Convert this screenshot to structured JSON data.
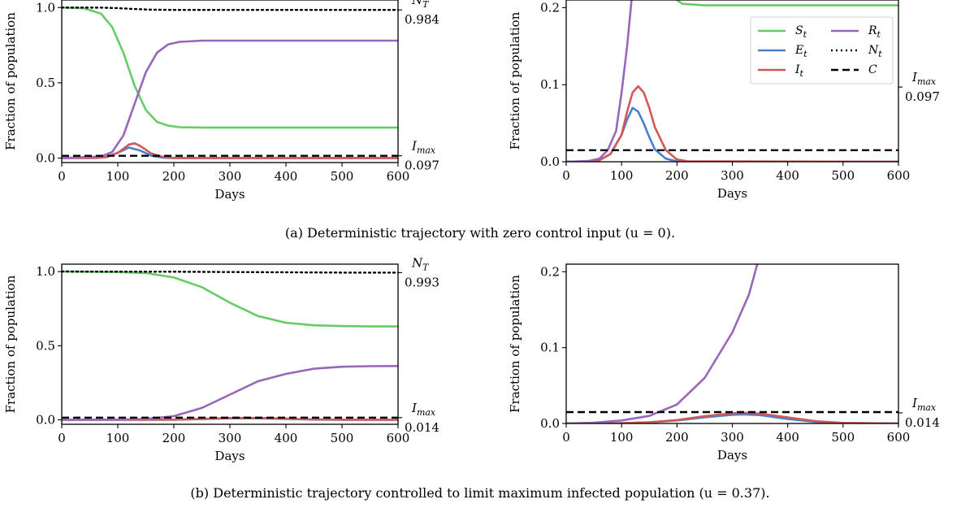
{
  "colors": {
    "S": "#66cc66",
    "E": "#4a7fd0",
    "I": "#d05858",
    "R": "#9966bb",
    "N": "#000000",
    "C": "#000000"
  },
  "captions": {
    "a": "(a) Deterministic trajectory with zero control input (u = 0).",
    "b": "(b) Deterministic trajectory controlled to limit maximum infected population (u = 0.37)."
  },
  "chart_data": [
    {
      "id": "a-full",
      "type": "line",
      "xlabel": "Days",
      "ylabel": "Fraction of population",
      "xlim": [
        0,
        600
      ],
      "ylim": [
        -0.03,
        1.05
      ],
      "xticks": [
        "0",
        "100",
        "200",
        "300",
        "400",
        "500",
        "600"
      ],
      "yticks": [
        "0.0",
        "0.5",
        "1.0"
      ],
      "right_labels": [
        {
          "name": "N_T",
          "value": "0.984"
        },
        {
          "name": "I_max",
          "value": "0.097"
        }
      ],
      "series": [
        {
          "key": "S",
          "x": [
            0,
            40,
            70,
            90,
            110,
            130,
            150,
            170,
            190,
            210,
            250,
            600
          ],
          "y": [
            1.0,
            0.995,
            0.96,
            0.87,
            0.7,
            0.48,
            0.32,
            0.24,
            0.215,
            0.205,
            0.203,
            0.203
          ]
        },
        {
          "key": "E",
          "x": [
            0,
            60,
            80,
            100,
            120,
            140,
            160,
            180,
            200,
            600
          ],
          "y": [
            0,
            0.001,
            0.008,
            0.035,
            0.07,
            0.05,
            0.015,
            0.003,
            0,
            0
          ]
        },
        {
          "key": "I",
          "x": [
            0,
            60,
            80,
            100,
            120,
            130,
            140,
            160,
            180,
            200,
            220,
            600
          ],
          "y": [
            0,
            0.001,
            0.006,
            0.035,
            0.09,
            0.098,
            0.08,
            0.03,
            0.008,
            0.001,
            0,
            0
          ]
        },
        {
          "key": "R",
          "x": [
            0,
            70,
            90,
            110,
            130,
            150,
            170,
            190,
            210,
            250,
            600
          ],
          "y": [
            0,
            0.01,
            0.04,
            0.15,
            0.36,
            0.57,
            0.7,
            0.755,
            0.772,
            0.78,
            0.78
          ]
        },
        {
          "key": "N",
          "x": [
            0,
            70,
            100,
            130,
            160,
            200,
            250,
            600
          ],
          "y": [
            1.0,
            0.999,
            0.996,
            0.99,
            0.986,
            0.984,
            0.984,
            0.984
          ]
        },
        {
          "key": "C",
          "x": [
            0,
            600
          ],
          "y": [
            0.015,
            0.015
          ]
        }
      ]
    },
    {
      "id": "a-zoom",
      "type": "line",
      "xlabel": "Days",
      "ylabel": "Fraction of population",
      "xlim": [
        0,
        600
      ],
      "ylim": [
        0,
        0.21
      ],
      "xticks": [
        "0",
        "100",
        "200",
        "300",
        "400",
        "500",
        "600"
      ],
      "yticks": [
        "0.0",
        "0.1",
        "0.2"
      ],
      "right_labels": [
        {
          "name": "I_max",
          "value": "0.097"
        }
      ],
      "legend": {
        "placement": "top-right",
        "entries": [
          {
            "key": "S",
            "label": "S_t"
          },
          {
            "key": "E",
            "label": "E_t"
          },
          {
            "key": "I",
            "label": "I_t"
          },
          {
            "key": "R",
            "label": "R_t"
          },
          {
            "key": "N",
            "label": "N_t"
          },
          {
            "key": "C",
            "label": "C"
          }
        ]
      },
      "series": [
        {
          "key": "S",
          "x": [
            150,
            170,
            190,
            210,
            250,
            600
          ],
          "y": [
            0.32,
            0.24,
            0.215,
            0.205,
            0.203,
            0.203
          ]
        },
        {
          "key": "E",
          "x": [
            0,
            40,
            60,
            80,
            100,
            110,
            120,
            130,
            140,
            150,
            160,
            180,
            200,
            220,
            600
          ],
          "y": [
            0,
            0.0005,
            0.002,
            0.01,
            0.035,
            0.055,
            0.07,
            0.065,
            0.05,
            0.032,
            0.016,
            0.004,
            0.0005,
            0,
            0
          ]
        },
        {
          "key": "I",
          "x": [
            0,
            40,
            60,
            80,
            100,
            110,
            120,
            130,
            140,
            150,
            160,
            180,
            200,
            220,
            600
          ],
          "y": [
            0,
            0.0005,
            0.002,
            0.01,
            0.035,
            0.065,
            0.09,
            0.098,
            0.09,
            0.07,
            0.045,
            0.015,
            0.003,
            0.0005,
            0
          ]
        },
        {
          "key": "R",
          "x": [
            0,
            40,
            60,
            75,
            90,
            100,
            110,
            120
          ],
          "y": [
            0,
            0.001,
            0.004,
            0.015,
            0.04,
            0.09,
            0.15,
            0.225
          ]
        },
        {
          "key": "C",
          "x": [
            0,
            600
          ],
          "y": [
            0.015,
            0.015
          ]
        }
      ]
    },
    {
      "id": "b-full",
      "type": "line",
      "xlabel": "Days",
      "ylabel": "Fraction of population",
      "xlim": [
        0,
        600
      ],
      "ylim": [
        -0.03,
        1.05
      ],
      "xticks": [
        "0",
        "100",
        "200",
        "300",
        "400",
        "500",
        "600"
      ],
      "yticks": [
        "0.0",
        "0.5",
        "1.0"
      ],
      "right_labels": [
        {
          "name": "N_T",
          "value": "0.993"
        },
        {
          "name": "I_max",
          "value": "0.014"
        }
      ],
      "series": [
        {
          "key": "S",
          "x": [
            0,
            100,
            150,
            200,
            250,
            300,
            350,
            400,
            450,
            500,
            550,
            600
          ],
          "y": [
            1.0,
            0.997,
            0.99,
            0.96,
            0.895,
            0.79,
            0.7,
            0.655,
            0.638,
            0.632,
            0.63,
            0.63
          ]
        },
        {
          "key": "E",
          "x": [
            0,
            200,
            250,
            300,
            350,
            400,
            450,
            500,
            600
          ],
          "y": [
            0,
            0.001,
            0.005,
            0.01,
            0.01,
            0.006,
            0.002,
            0.0005,
            0
          ]
        },
        {
          "key": "I",
          "x": [
            0,
            200,
            250,
            300,
            350,
            400,
            450,
            500,
            600
          ],
          "y": [
            0,
            0.001,
            0.006,
            0.012,
            0.013,
            0.008,
            0.003,
            0.001,
            0
          ]
        },
        {
          "key": "R",
          "x": [
            0,
            100,
            150,
            200,
            250,
            300,
            350,
            400,
            450,
            500,
            550,
            600
          ],
          "y": [
            0,
            0.002,
            0.006,
            0.025,
            0.08,
            0.17,
            0.26,
            0.31,
            0.345,
            0.358,
            0.362,
            0.363
          ]
        },
        {
          "key": "N",
          "x": [
            0,
            200,
            300,
            400,
            500,
            600
          ],
          "y": [
            1.0,
            0.999,
            0.997,
            0.995,
            0.993,
            0.993
          ]
        },
        {
          "key": "C",
          "x": [
            0,
            600
          ],
          "y": [
            0.015,
            0.015
          ]
        }
      ]
    },
    {
      "id": "b-zoom",
      "type": "line",
      "xlabel": "Days",
      "ylabel": "Fraction of population",
      "xlim": [
        0,
        600
      ],
      "ylim": [
        0,
        0.21
      ],
      "xticks": [
        "0",
        "100",
        "200",
        "300",
        "400",
        "500",
        "600"
      ],
      "yticks": [
        "0.0",
        "0.1",
        "0.2"
      ],
      "right_labels": [
        {
          "name": "I_max",
          "value": "0.014"
        }
      ],
      "series": [
        {
          "key": "E",
          "x": [
            0,
            100,
            150,
            200,
            250,
            300,
            320,
            350,
            400,
            450,
            500,
            600
          ],
          "y": [
            0,
            0.0003,
            0.0015,
            0.004,
            0.008,
            0.0115,
            0.012,
            0.011,
            0.006,
            0.002,
            0.0005,
            0
          ]
        },
        {
          "key": "I",
          "x": [
            0,
            100,
            150,
            200,
            250,
            300,
            330,
            350,
            400,
            450,
            500,
            600
          ],
          "y": [
            0,
            0.0003,
            0.0015,
            0.0045,
            0.0095,
            0.0135,
            0.014,
            0.013,
            0.008,
            0.003,
            0.0008,
            0
          ]
        },
        {
          "key": "R",
          "x": [
            0,
            50,
            100,
            150,
            200,
            250,
            300,
            330,
            345
          ],
          "y": [
            0,
            0.001,
            0.004,
            0.01,
            0.025,
            0.06,
            0.12,
            0.17,
            0.21
          ]
        },
        {
          "key": "C",
          "x": [
            0,
            600
          ],
          "y": [
            0.015,
            0.015
          ]
        }
      ]
    }
  ]
}
